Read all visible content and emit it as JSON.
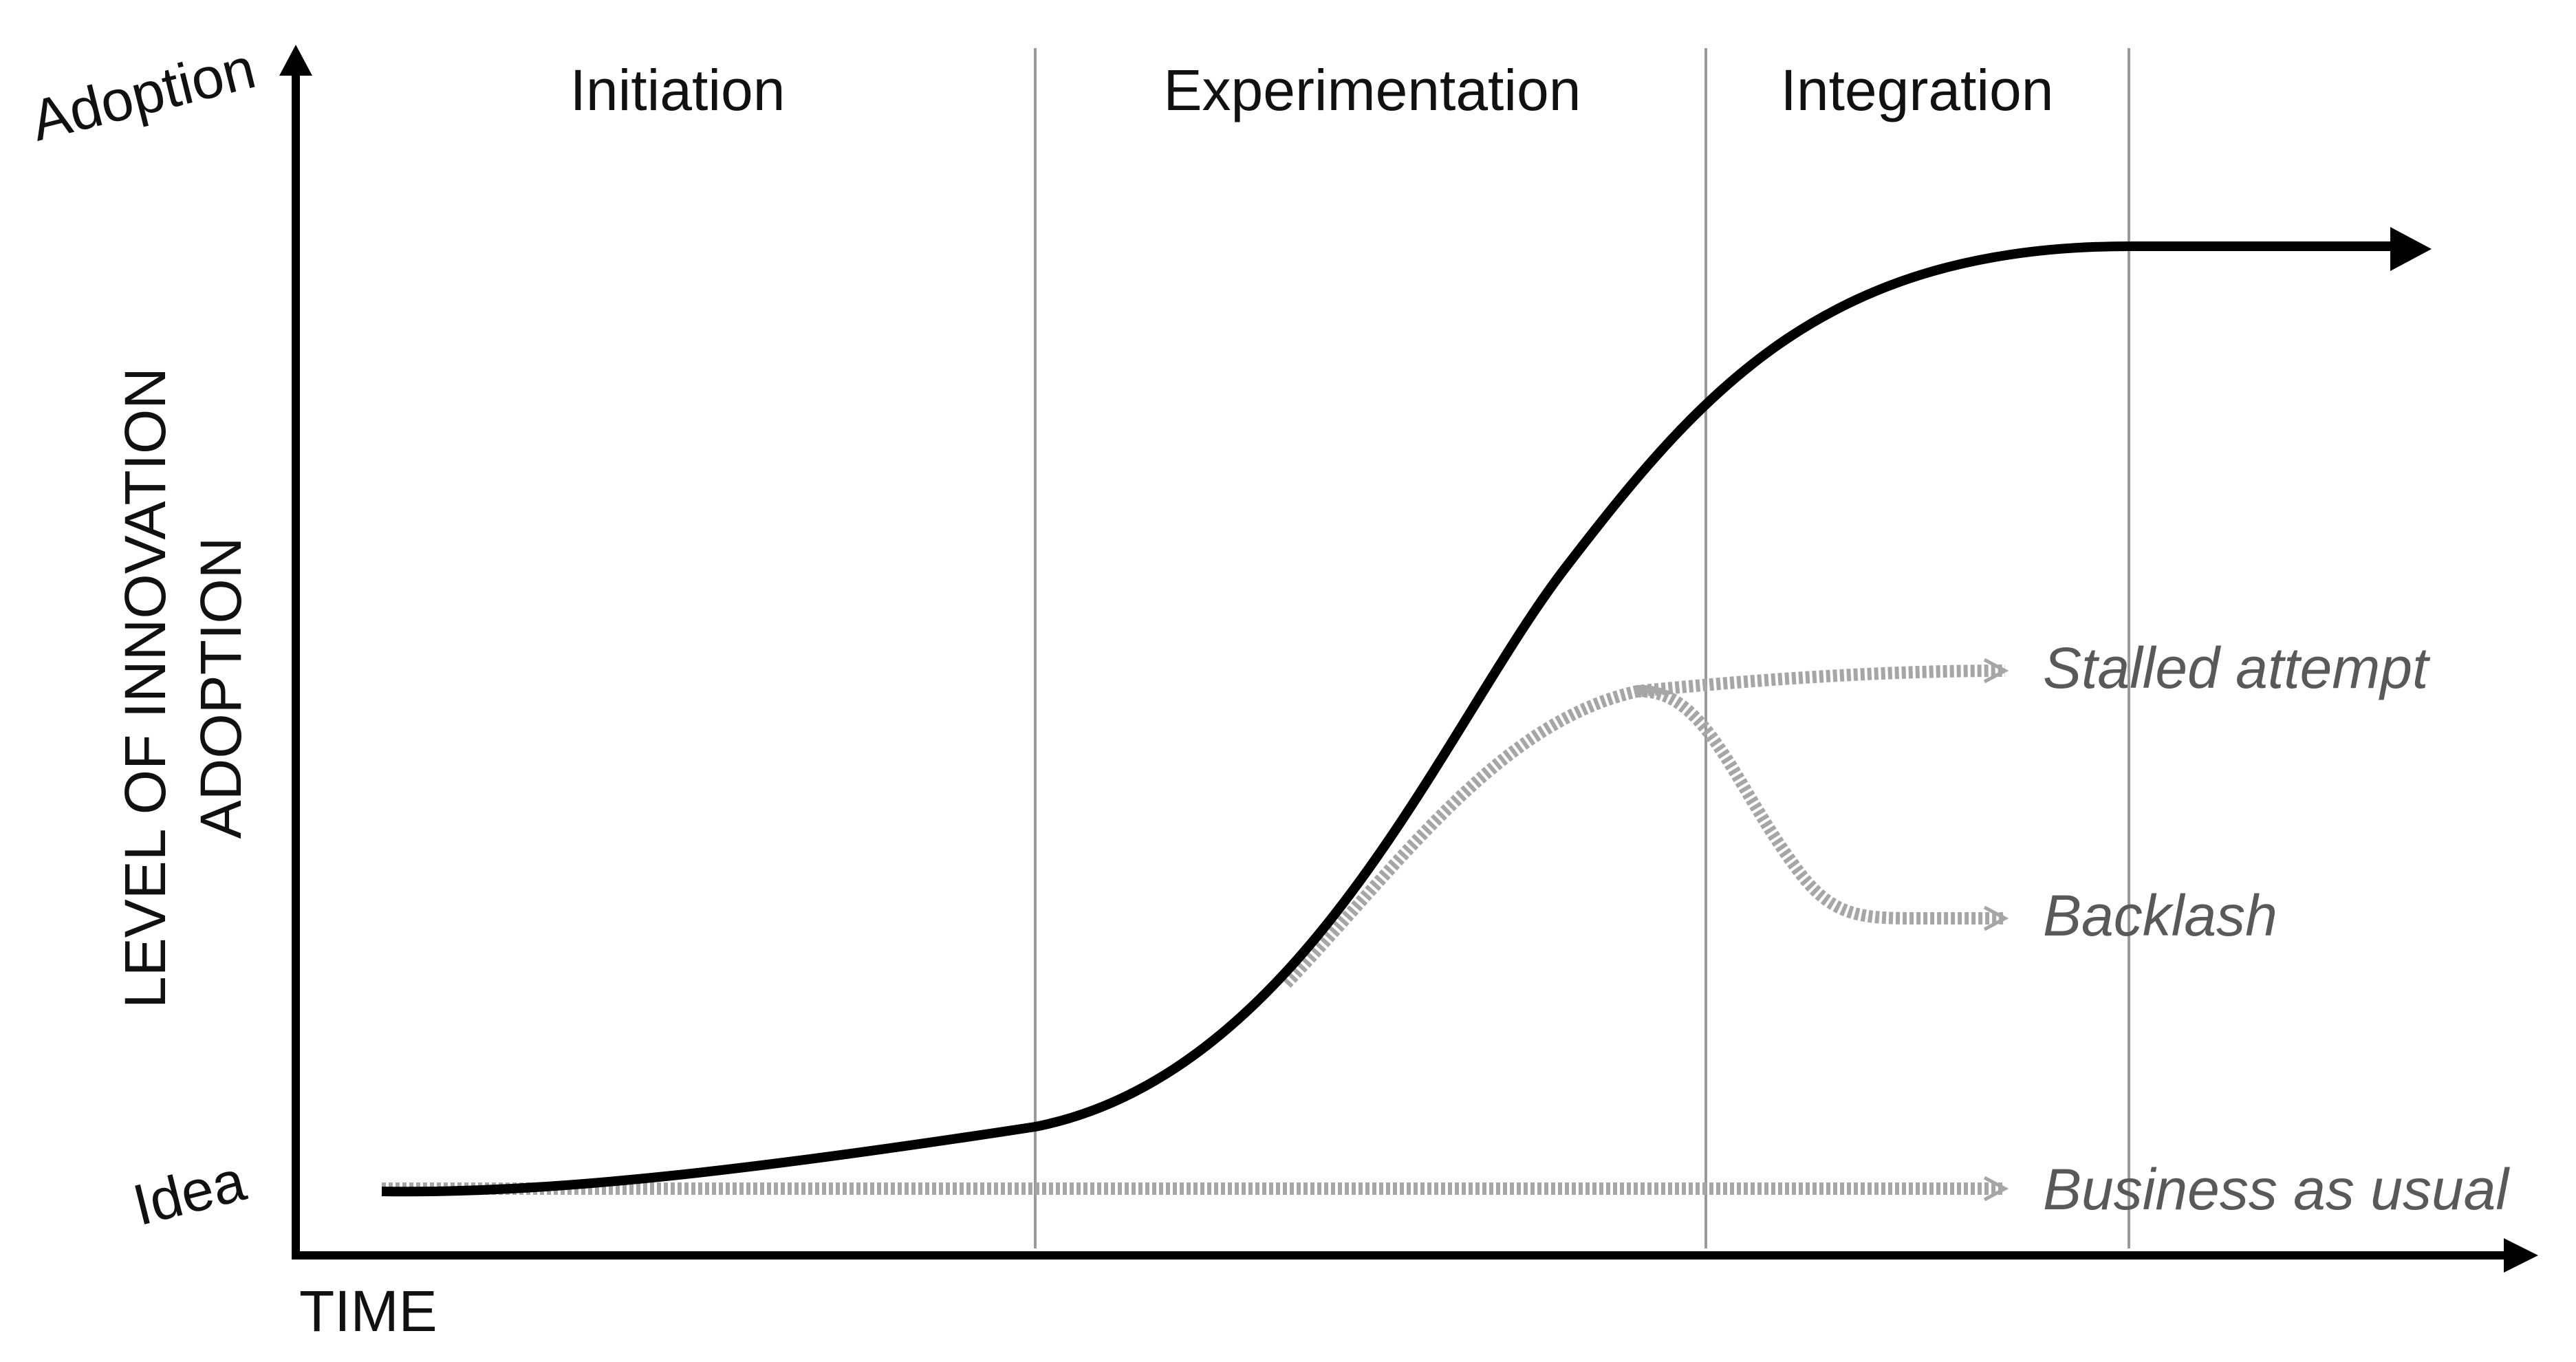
{
  "diagram": {
    "axes": {
      "y_top_label": "Adoption",
      "y_bottom_label": "Idea",
      "y_title_line1": "LEVEL OF INNOVATION",
      "y_title_line2": "ADOPTION",
      "x_title": "TIME"
    },
    "phases": [
      {
        "label": "Initiation"
      },
      {
        "label": "Experimentation"
      },
      {
        "label": "Integration"
      }
    ],
    "outcomes": {
      "stalled": "Stalled attempt",
      "backlash": "Backlash",
      "business_as_usual": "Business as usual"
    },
    "colors": {
      "axis": "#000000",
      "main_curve": "#000000",
      "phase_divider": "#9a9a9a",
      "outcome_path": "#a6a6a6",
      "outcome_text": "#595959"
    }
  }
}
